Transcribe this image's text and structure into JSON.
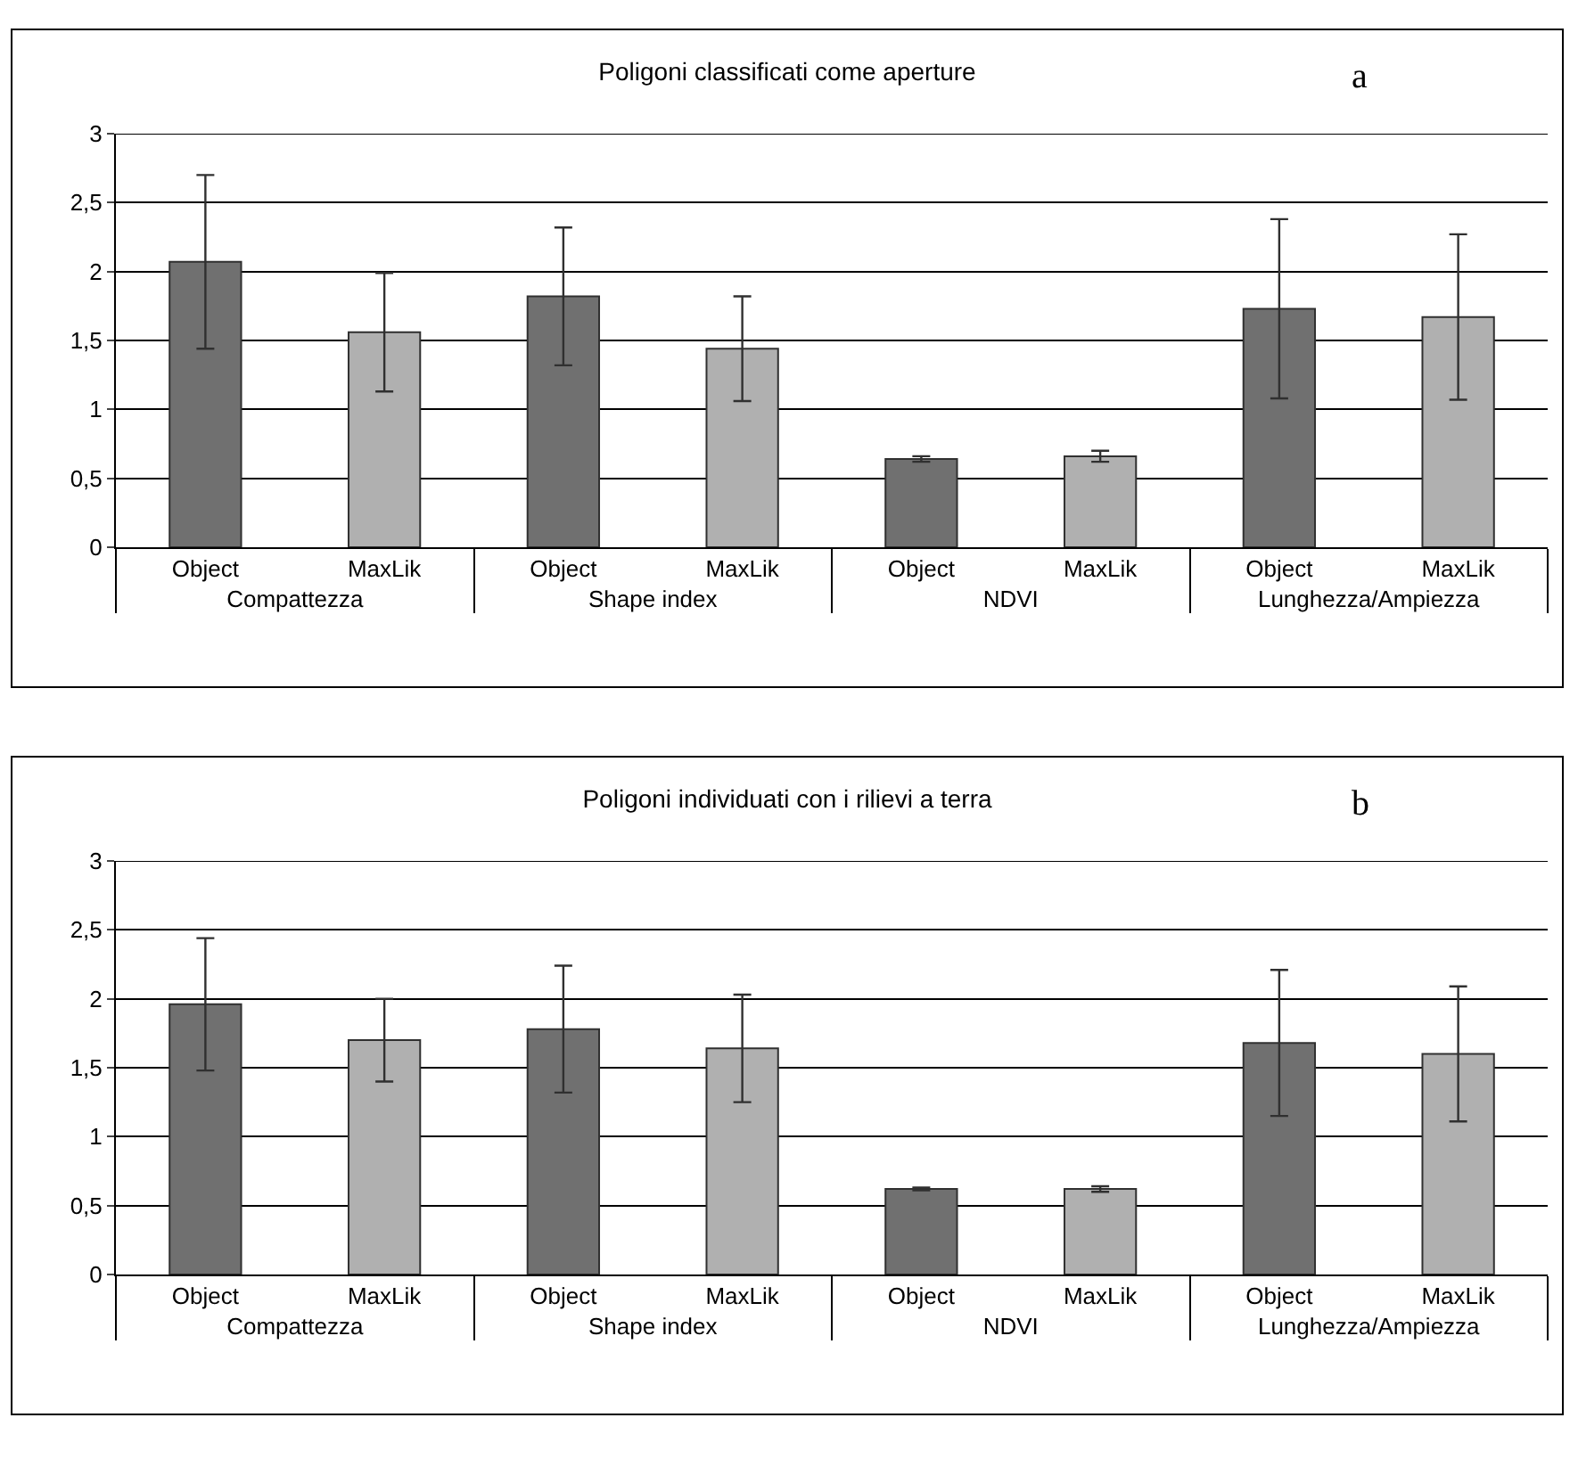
{
  "chart_data": [
    {
      "type": "bar",
      "title": "Poligoni classificati come aperture",
      "categories": [
        "Object",
        "MaxLik",
        "Object",
        "MaxLik",
        "Object",
        "MaxLik",
        "Object",
        "MaxLik"
      ],
      "values": [
        2.07,
        1.56,
        1.82,
        1.44,
        0.64,
        0.66,
        1.73,
        1.67
      ],
      "errors": [
        0.63,
        0.43,
        0.5,
        0.38,
        0.02,
        0.04,
        0.65,
        0.6
      ],
      "colors": [
        "#707070",
        "#b0b0b0",
        "#707070",
        "#b0b0b0",
        "#707070",
        "#b0b0b0",
        "#707070",
        "#b0b0b0"
      ],
      "annotations": [
        "Compattezza",
        "Shape index",
        "NDVI",
        "Lunghezza/Ampiezza",
        "a"
      ],
      "ylim": [
        0,
        3
      ],
      "yticks": [
        0,
        {
          "value": 0.5,
          "label": "0,5"
        },
        1,
        {
          "value": 1.5,
          "label": "1,5"
        },
        2,
        {
          "value": 2.5,
          "label": "2,5"
        },
        3
      ],
      "grid": "y"
    },
    {
      "type": "bar",
      "title": "Poligoni individuati con i rilievi a terra",
      "categories": [
        "Object",
        "MaxLik",
        "Object",
        "MaxLik",
        "Object",
        "MaxLik",
        "Object",
        "MaxLik"
      ],
      "values": [
        1.96,
        1.7,
        1.78,
        1.64,
        0.62,
        0.62,
        1.68,
        1.6
      ],
      "errors": [
        0.48,
        0.3,
        0.46,
        0.39,
        0.01,
        0.02,
        0.53,
        0.49
      ],
      "colors": [
        "#707070",
        "#b0b0b0",
        "#707070",
        "#b0b0b0",
        "#707070",
        "#b0b0b0",
        "#707070",
        "#b0b0b0"
      ],
      "annotations": [
        "Compattezza",
        "Shape index",
        "NDVI",
        "Lunghezza/Ampiezza",
        "b"
      ],
      "ylim": [
        0,
        3
      ],
      "yticks": [
        0,
        {
          "value": 0.5,
          "label": "0,5"
        },
        1,
        {
          "value": 1.5,
          "label": "1,5"
        },
        2,
        {
          "value": 2.5,
          "label": "2,5"
        },
        3
      ],
      "grid": "y"
    }
  ]
}
